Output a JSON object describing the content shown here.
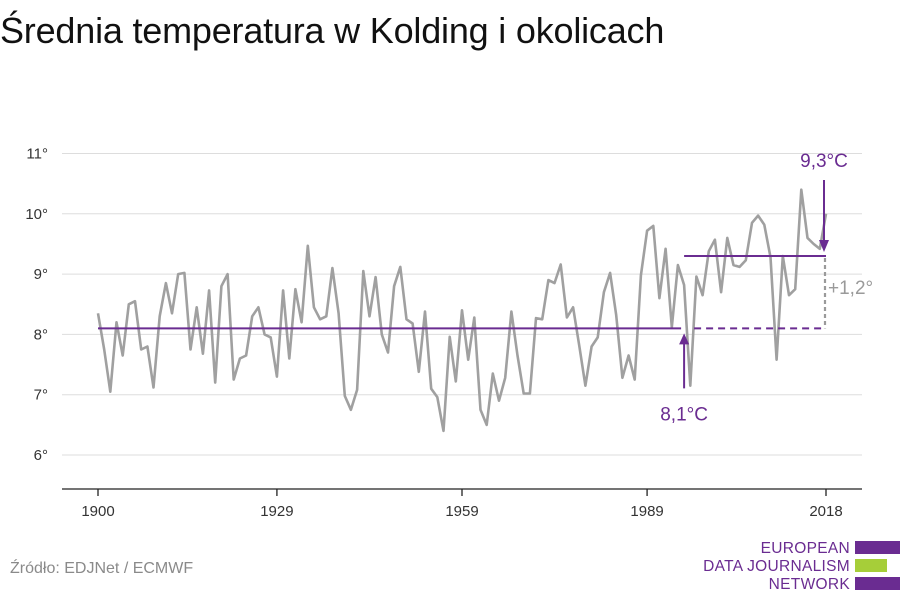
{
  "title": "Średnia temperatura w Kolding i okolicach",
  "source": "Źródło: EDJNet / ECMWF",
  "logo": {
    "lines": [
      "EUROPEAN",
      "DATA JOURNALISM",
      "NETWORK"
    ],
    "colors": {
      "purple": "#6a2c91",
      "green": "#a6ce39"
    }
  },
  "colors": {
    "series": "#a0a0a0",
    "baseline": "#6a2c91",
    "grid": "#dddddd",
    "axis": "#222222",
    "delta": "#9a9a9a"
  },
  "chart_data": {
    "type": "line",
    "title": "Średnia temperatura w Kolding i okolicach",
    "xlabel": "",
    "ylabel": "",
    "xlim": [
      1896,
      2021
    ],
    "ylim": [
      5.5,
      11.3
    ],
    "x_ticks": [
      1900,
      1929,
      1959,
      1989,
      2018
    ],
    "y_ticks": [
      6,
      7,
      8,
      9,
      10,
      11
    ],
    "y_tick_labels": [
      "6°",
      "7°",
      "8°",
      "9°",
      "10°",
      "11°"
    ],
    "grid": true,
    "series": [
      {
        "x": [
          1900,
          1901,
          1902,
          1903,
          1904,
          1905,
          1906,
          1907,
          1908,
          1909,
          1910,
          1911,
          1912,
          1913,
          1914,
          1915,
          1916,
          1917,
          1918,
          1919,
          1920,
          1921,
          1922,
          1923,
          1924,
          1925,
          1926,
          1927,
          1928,
          1929,
          1930,
          1931,
          1932,
          1933,
          1934,
          1935,
          1936,
          1937,
          1938,
          1939,
          1940,
          1941,
          1942,
          1943,
          1944,
          1945,
          1946,
          1947,
          1948,
          1949,
          1950,
          1951,
          1952,
          1953,
          1954,
          1955,
          1956,
          1957,
          1958,
          1959,
          1960,
          1961,
          1962,
          1963,
          1964,
          1965,
          1966,
          1967,
          1968,
          1969,
          1970,
          1971,
          1972,
          1973,
          1974,
          1975,
          1976,
          1977,
          1978,
          1979,
          1980,
          1981,
          1982,
          1983,
          1984,
          1985,
          1986,
          1987,
          1988,
          1989,
          1990,
          1991,
          1992,
          1993,
          1994,
          1995,
          1996,
          1997,
          1998,
          1999,
          2000,
          2001,
          2002,
          2003,
          2004,
          2005,
          2006,
          2007,
          2008,
          2009,
          2010,
          2011,
          2012,
          2013,
          2014,
          2015,
          2016,
          2017,
          2018
        ],
        "values": [
          8.35,
          7.75,
          7.05,
          8.2,
          7.65,
          8.5,
          8.55,
          7.75,
          7.8,
          7.12,
          8.3,
          8.85,
          8.35,
          9.0,
          9.02,
          7.75,
          8.45,
          7.68,
          8.73,
          7.2,
          8.8,
          9.0,
          7.25,
          7.6,
          7.65,
          8.3,
          8.45,
          8.0,
          7.95,
          7.3,
          8.73,
          7.6,
          8.75,
          8.2,
          9.47,
          8.45,
          8.25,
          8.3,
          9.1,
          8.35,
          6.98,
          6.75,
          7.08,
          9.05,
          8.3,
          8.95,
          8.0,
          7.7,
          8.8,
          9.12,
          8.25,
          8.18,
          7.38,
          8.38,
          7.1,
          6.96,
          6.4,
          7.96,
          7.22,
          8.4,
          7.58,
          8.28,
          6.75,
          6.5,
          7.35,
          6.9,
          7.28,
          8.38,
          7.65,
          7.02,
          7.02,
          8.27,
          8.25,
          8.9,
          8.85,
          9.16,
          8.28,
          8.45,
          7.82,
          7.15,
          7.8,
          7.95,
          8.7,
          9.02,
          8.32,
          7.28,
          7.65,
          7.25,
          8.98,
          9.72,
          9.8,
          8.6,
          9.42,
          8.12,
          9.15,
          8.82,
          7.15,
          8.96,
          8.65,
          9.38,
          9.57,
          8.7,
          9.6,
          9.15,
          9.12,
          9.23,
          9.85,
          9.97,
          9.82,
          9.28,
          7.58,
          9.3,
          8.65,
          8.75,
          10.4,
          9.6,
          9.5,
          9.42,
          10.0
        ]
      }
    ],
    "baseline_value": 8.1,
    "recent_value": 9.3,
    "recent_range": [
      1995,
      2018
    ],
    "delta_label": "+1,2°",
    "baseline_label": "8,1°C",
    "recent_label": "9,3°C",
    "baseline_label_year": 1995,
    "recent_label_year": 2018
  }
}
